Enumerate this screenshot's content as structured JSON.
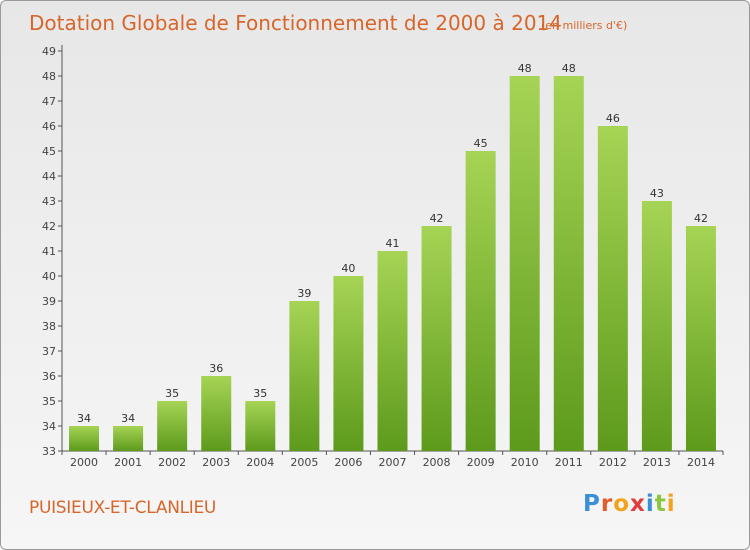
{
  "chart_data": {
    "type": "bar",
    "title": "Dotation Globale de Fonctionnement de 2000 à 2014",
    "unit": "(en milliers d'€)",
    "categories": [
      "2000",
      "2001",
      "2002",
      "2003",
      "2004",
      "2005",
      "2006",
      "2007",
      "2008",
      "2009",
      "2010",
      "2011",
      "2012",
      "2013",
      "2014"
    ],
    "values": [
      34,
      34,
      35,
      36,
      35,
      39,
      40,
      41,
      42,
      45,
      48,
      48,
      46,
      43,
      42
    ],
    "ylim": [
      33,
      49
    ],
    "yticks": [
      33,
      34,
      35,
      36,
      37,
      38,
      39,
      40,
      41,
      42,
      43,
      44,
      45,
      46,
      47,
      48,
      49
    ],
    "grid": false,
    "bar_color": "#7dba2f",
    "bar_color_light": "#a6d455",
    "bar_color_dark": "#5d9a1c"
  },
  "footer": {
    "commune": "PUISIEUX-ET-CLANLIEU",
    "logo_text": "Proxiti",
    "logo_letters": [
      {
        "ch": "P",
        "color": "#3a8fd6"
      },
      {
        "ch": "r",
        "color": "#e45b2a"
      },
      {
        "ch": "o",
        "color": "#f2a21b"
      },
      {
        "ch": "x",
        "color": "#e23c3c"
      },
      {
        "ch": "i",
        "color": "#3a8fd6"
      },
      {
        "ch": "t",
        "color": "#8cc63f"
      },
      {
        "ch": "i",
        "color": "#f2a21b"
      }
    ]
  }
}
